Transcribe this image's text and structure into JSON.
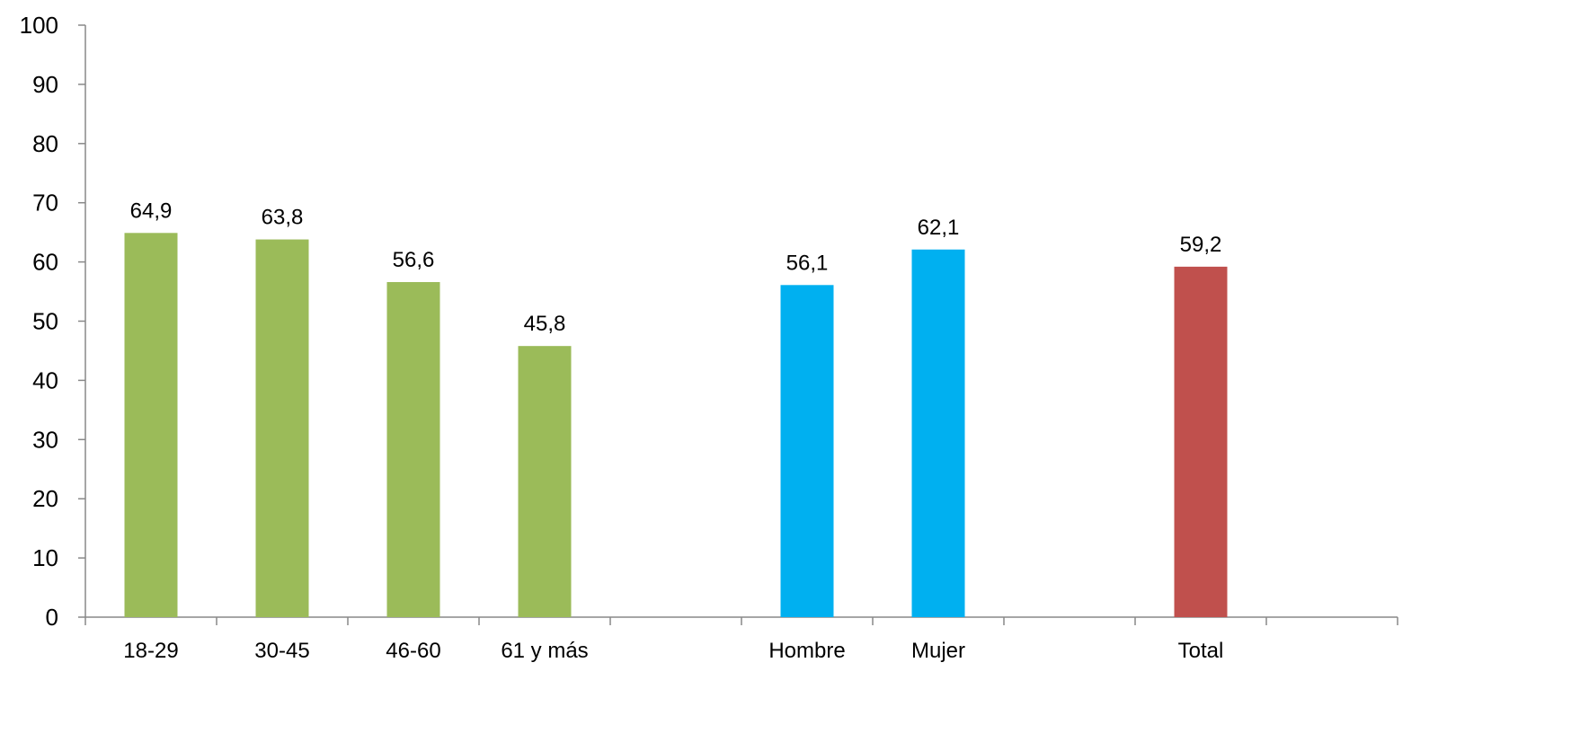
{
  "chart_data": {
    "type": "bar",
    "title": "",
    "xlabel": "",
    "ylabel": "",
    "ylim": [
      0,
      100
    ],
    "yticks": [
      0,
      10,
      20,
      30,
      40,
      50,
      60,
      70,
      80,
      90,
      100
    ],
    "grid": false,
    "slots": [
      "18-29",
      "30-45",
      "46-60",
      "61 y más",
      "",
      "Hombre",
      "Mujer",
      "",
      "Total",
      ""
    ],
    "bars": [
      {
        "category": "18-29",
        "value": 64.9,
        "label": "64,9",
        "color": "#9BBB59"
      },
      {
        "category": "30-45",
        "value": 63.8,
        "label": "63,8",
        "color": "#9BBB59"
      },
      {
        "category": "46-60",
        "value": 56.6,
        "label": "56,6",
        "color": "#9BBB59"
      },
      {
        "category": "61 y más",
        "value": 45.8,
        "label": "45,8",
        "color": "#9BBB59"
      },
      {
        "category": "Hombre",
        "value": 56.1,
        "label": "56,1",
        "color": "#00B0F0"
      },
      {
        "category": "Mujer",
        "value": 62.1,
        "label": "62,1",
        "color": "#00B0F0"
      },
      {
        "category": "Total",
        "value": 59.2,
        "label": "59,2",
        "color": "#C0504D"
      }
    ]
  }
}
